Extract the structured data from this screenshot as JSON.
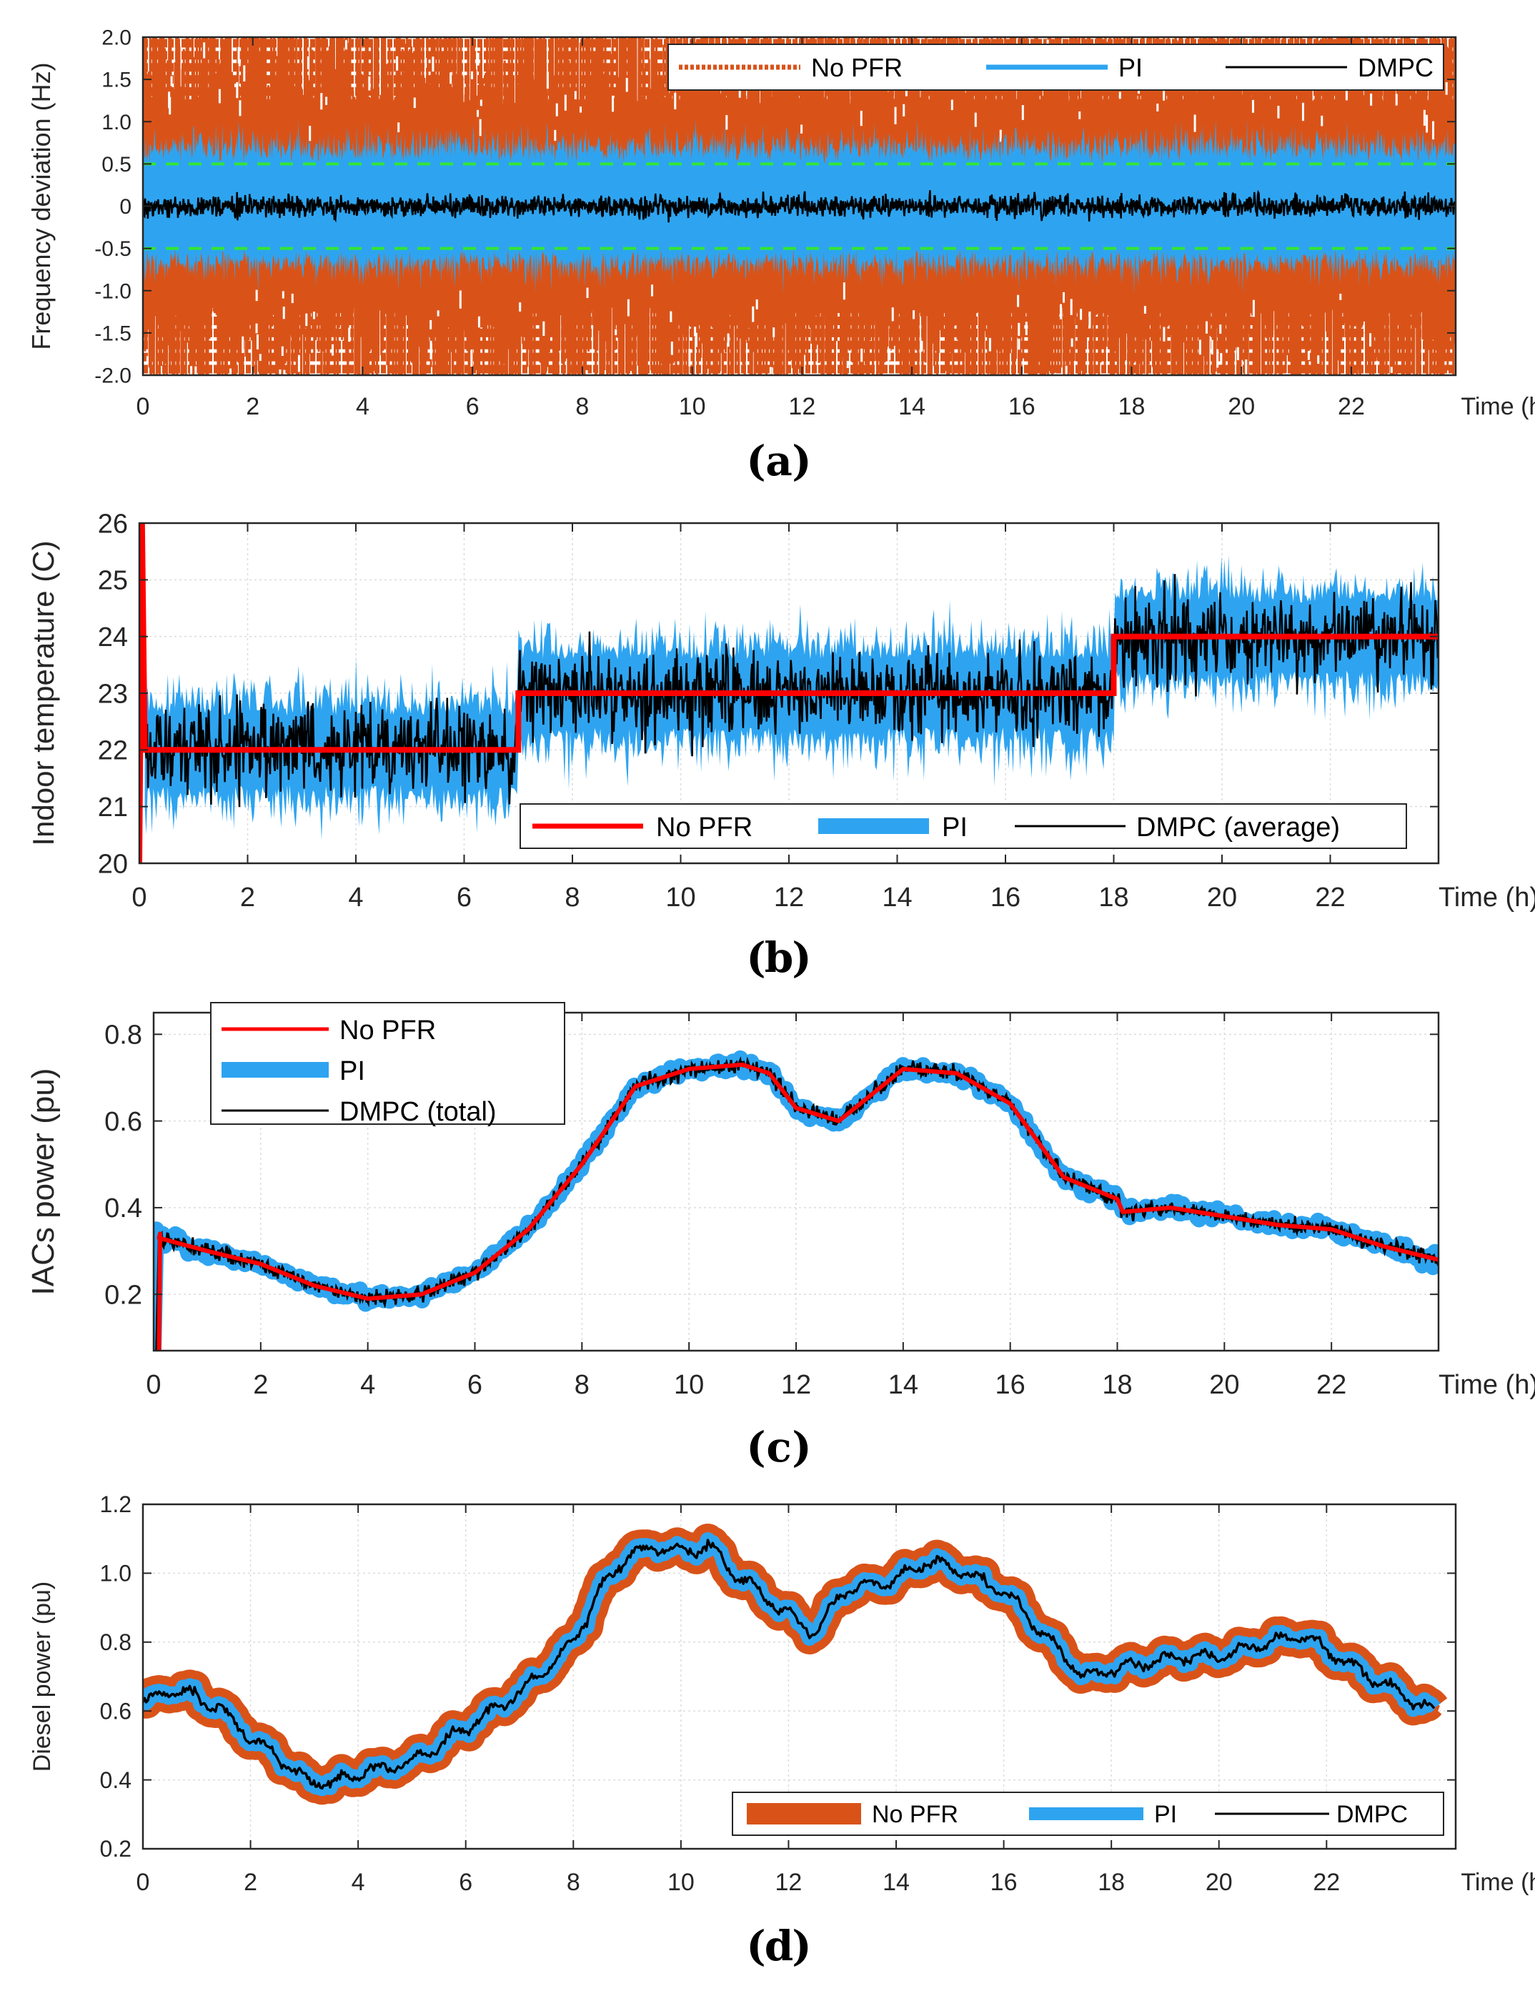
{
  "chart_data": [
    {
      "type": "line",
      "caption_letter": "a",
      "caption_open": "(",
      "caption_close": ")",
      "ylabel": "Frequency deviation (Hz)",
      "xlabel": "Time (h)",
      "xlim": [
        0,
        23.9
      ],
      "ylim": [
        -2.0,
        2.0
      ],
      "xticks": [
        0,
        2,
        4,
        6,
        8,
        10,
        12,
        14,
        16,
        18,
        20,
        22
      ],
      "yticks": [
        "2.0",
        "1.5",
        "1.0",
        "0.5",
        "0",
        "-0.5",
        "-1.0",
        "-1.5",
        "-2.0"
      ],
      "ytick_values": [
        2.0,
        1.5,
        1.0,
        0.5,
        0,
        -0.5,
        -1.0,
        -1.5,
        -2.0
      ],
      "legend_position": "top-right",
      "reference_lines": [
        0.5,
        -0.5
      ],
      "series": [
        {
          "name": "No PFR",
          "color": "#d95319",
          "style": "dotted-wide",
          "amplitude": 2.0
        },
        {
          "name": "PI",
          "color": "#2ea4f0",
          "style": "solid",
          "amplitude": 0.85
        },
        {
          "name": "DMPC",
          "color": "#000000",
          "style": "solid-thin",
          "amplitude": 0.25
        }
      ],
      "ref_color": "#33e633"
    },
    {
      "type": "line",
      "caption_letter": "b",
      "caption_open": "(",
      "caption_close": ")",
      "ylabel": "Indoor temperature (C)",
      "xlabel": "Time (h)",
      "xlim": [
        0,
        24
      ],
      "ylim": [
        20,
        26
      ],
      "xticks": [
        0,
        2,
        4,
        6,
        8,
        10,
        12,
        14,
        16,
        18,
        20,
        22
      ],
      "yticks": [
        "26",
        "25",
        "24",
        "23",
        "22",
        "21",
        "20"
      ],
      "ytick_values": [
        26,
        25,
        24,
        23,
        22,
        21,
        20
      ],
      "legend_position": "bottom-right",
      "setpoint_schedule": [
        [
          0.1,
          22
        ],
        [
          7,
          22
        ],
        [
          7,
          23
        ],
        [
          18,
          23
        ],
        [
          18,
          24
        ],
        [
          24,
          24
        ]
      ],
      "series": [
        {
          "name": "No PFR",
          "color": "#ff0000"
        },
        {
          "name": "PI",
          "color": "#2ea4f0"
        },
        {
          "name": "DMPC (average)",
          "color": "#000000"
        }
      ]
    },
    {
      "type": "line",
      "caption_letter": "c",
      "caption_open": "(",
      "caption_close": ")",
      "ylabel": "IACs power (pu)",
      "xlabel": "Time (h)",
      "xlim": [
        0,
        24
      ],
      "ylim": [
        0.07,
        0.85
      ],
      "xticks": [
        0,
        2,
        4,
        6,
        8,
        10,
        12,
        14,
        16,
        18,
        20,
        22
      ],
      "yticks": [
        "0.8",
        "0.6",
        "0.4",
        "0.2"
      ],
      "ytick_values": [
        0.8,
        0.6,
        0.4,
        0.2
      ],
      "legend_position": "top-left",
      "profile": [
        [
          0.1,
          0.33
        ],
        [
          1,
          0.3
        ],
        [
          2,
          0.27
        ],
        [
          3,
          0.22
        ],
        [
          4,
          0.19
        ],
        [
          5,
          0.2
        ],
        [
          6,
          0.25
        ],
        [
          7,
          0.35
        ],
        [
          8,
          0.5
        ],
        [
          9,
          0.68
        ],
        [
          10,
          0.72
        ],
        [
          11,
          0.73
        ],
        [
          11.5,
          0.71
        ],
        [
          12,
          0.63
        ],
        [
          12.8,
          0.6
        ],
        [
          13.5,
          0.67
        ],
        [
          14,
          0.72
        ],
        [
          15,
          0.71
        ],
        [
          16,
          0.64
        ],
        [
          17,
          0.47
        ],
        [
          18,
          0.42
        ],
        [
          18.1,
          0.39
        ],
        [
          19,
          0.4
        ],
        [
          20,
          0.38
        ],
        [
          21,
          0.36
        ],
        [
          22,
          0.35
        ],
        [
          23,
          0.31
        ],
        [
          24,
          0.28
        ]
      ],
      "series": [
        {
          "name": "No PFR",
          "color": "#ff0000"
        },
        {
          "name": "PI",
          "color": "#2ea4f0"
        },
        {
          "name": "DMPC (total)",
          "color": "#000000"
        }
      ]
    },
    {
      "type": "line",
      "caption_letter": "d",
      "caption_open": "(",
      "caption_close": ")",
      "ylabel": "Diesel power (pu)",
      "xlabel": "Time (h)",
      "xlim": [
        0,
        24.4
      ],
      "ylim": [
        0.2,
        1.2
      ],
      "xticks": [
        0,
        2,
        4,
        6,
        8,
        10,
        12,
        14,
        16,
        18,
        20,
        22
      ],
      "yticks": [
        "1.2",
        "1.0",
        "0.8",
        "0.6",
        "0.4",
        "0.2"
      ],
      "ytick_values": [
        1.2,
        1.0,
        0.8,
        0.6,
        0.4,
        0.2
      ],
      "legend_position": "bottom-right",
      "profile": [
        [
          0,
          0.62
        ],
        [
          0.5,
          0.66
        ],
        [
          1,
          0.64
        ],
        [
          1.5,
          0.6
        ],
        [
          2,
          0.52
        ],
        [
          2.5,
          0.47
        ],
        [
          3,
          0.4
        ],
        [
          3.5,
          0.39
        ],
        [
          4,
          0.42
        ],
        [
          5,
          0.45
        ],
        [
          6,
          0.55
        ],
        [
          7,
          0.65
        ],
        [
          8,
          0.8
        ],
        [
          8.5,
          0.95
        ],
        [
          9,
          1.05
        ],
        [
          9.5,
          1.08
        ],
        [
          10,
          1.06
        ],
        [
          10.5,
          1.08
        ],
        [
          11,
          1.0
        ],
        [
          12,
          0.88
        ],
        [
          12.5,
          0.82
        ],
        [
          13,
          0.95
        ],
        [
          14,
          0.98
        ],
        [
          14.5,
          1.03
        ],
        [
          15,
          1.02
        ],
        [
          16,
          0.95
        ],
        [
          17,
          0.78
        ],
        [
          17.5,
          0.7
        ],
        [
          18,
          0.72
        ],
        [
          19,
          0.75
        ],
        [
          20,
          0.76
        ],
        [
          21,
          0.8
        ],
        [
          21.5,
          0.82
        ],
        [
          22,
          0.78
        ],
        [
          23,
          0.68
        ],
        [
          24,
          0.6
        ]
      ],
      "series": [
        {
          "name": "No PFR",
          "color": "#d95319"
        },
        {
          "name": "PI",
          "color": "#2ea4f0"
        },
        {
          "name": "DMPC",
          "color": "#000000"
        }
      ]
    }
  ]
}
